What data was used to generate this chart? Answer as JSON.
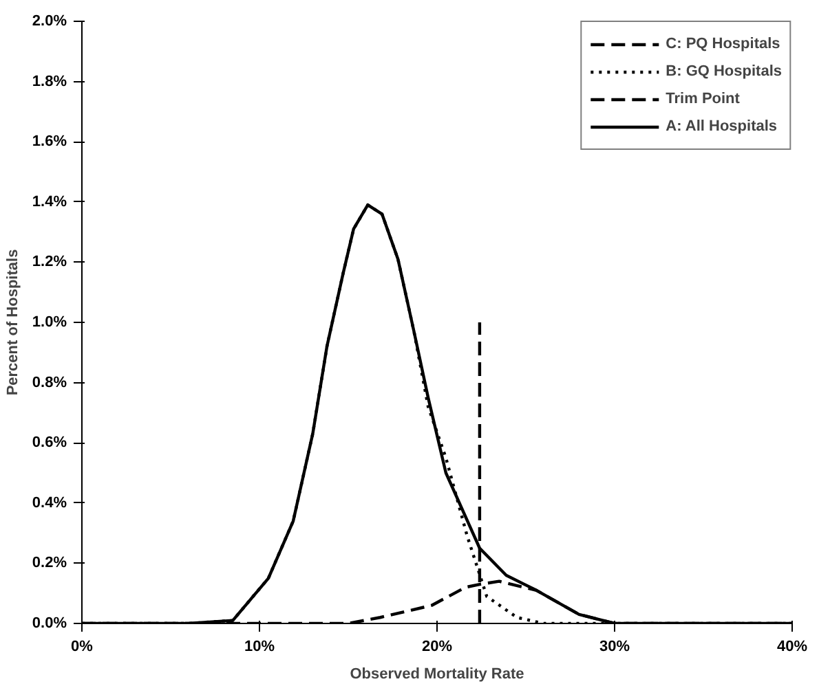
{
  "chart_data": {
    "type": "line",
    "xlabel": "Observed Mortality Rate",
    "ylabel": "Percent of Hospitals",
    "xlim": [
      0,
      40
    ],
    "ylim": [
      0,
      2.0
    ],
    "xticks": [
      {
        "value": 0,
        "label": "0%"
      },
      {
        "value": 10,
        "label": "10%"
      },
      {
        "value": 20,
        "label": "20%"
      },
      {
        "value": 30,
        "label": "30%"
      },
      {
        "value": 40,
        "label": "40%"
      }
    ],
    "yticks": [
      {
        "value": 0,
        "label": "0.0%"
      },
      {
        "value": 0.2,
        "label": "0.2%"
      },
      {
        "value": 0.4,
        "label": "0.4%"
      },
      {
        "value": 0.6,
        "label": "0.6%"
      },
      {
        "value": 0.8,
        "label": "0.8%"
      },
      {
        "value": 1.0,
        "label": "1.0%"
      },
      {
        "value": 1.2,
        "label": "1.2%"
      },
      {
        "value": 1.4,
        "label": "1.4%"
      },
      {
        "value": 1.6,
        "label": "1.6%"
      },
      {
        "value": 1.8,
        "label": "1.8%"
      },
      {
        "value": 2.0,
        "label": "2.0%"
      }
    ],
    "grid": false,
    "legend": "top right",
    "marker": "none",
    "series": [
      {
        "name": "C: PQ Hospitals",
        "color": "#000000",
        "line_style": "dashed",
        "x": [
          0,
          15,
          16.8,
          19.7,
          21.6,
          22.4,
          23.5,
          25.6,
          28,
          30,
          35,
          40
        ],
        "values": [
          0,
          0,
          0.02,
          0.06,
          0.12,
          0.13,
          0.14,
          0.11,
          0.03,
          0,
          0,
          0
        ]
      },
      {
        "name": "B: GQ Hospitals",
        "color": "#000000",
        "line_style": "dotted",
        "x": [
          0,
          6,
          8.5,
          10.5,
          11.9,
          13,
          13.8,
          14.7,
          15.3,
          16.1,
          16.9,
          17.8,
          18.7,
          19.5,
          20.5,
          21.7,
          22.8,
          24.5,
          26,
          30,
          40
        ],
        "values": [
          0,
          0,
          0.01,
          0.15,
          0.34,
          0.63,
          0.92,
          1.16,
          1.31,
          1.39,
          1.36,
          1.21,
          0.97,
          0.72,
          0.55,
          0.29,
          0.09,
          0.02,
          0,
          0,
          0
        ]
      },
      {
        "name": "Trim Point",
        "color": "#000000",
        "line_style": "dashed",
        "x": [
          22.4,
          22.4
        ],
        "values": [
          0,
          1.0
        ]
      },
      {
        "name": "A: All Hospitals",
        "color": "#000000",
        "line_style": "solid",
        "x": [
          0,
          6,
          8.5,
          10.5,
          11.9,
          13,
          13.8,
          14.7,
          15.3,
          16.1,
          16.9,
          17.8,
          18.7,
          19.5,
          20.5,
          22.4,
          23.9,
          25.6,
          28,
          30,
          35,
          40
        ],
        "values": [
          0,
          0,
          0.01,
          0.15,
          0.34,
          0.63,
          0.92,
          1.16,
          1.31,
          1.39,
          1.36,
          1.21,
          0.97,
          0.75,
          0.5,
          0.25,
          0.16,
          0.11,
          0.03,
          0,
          0,
          0
        ]
      }
    ]
  }
}
